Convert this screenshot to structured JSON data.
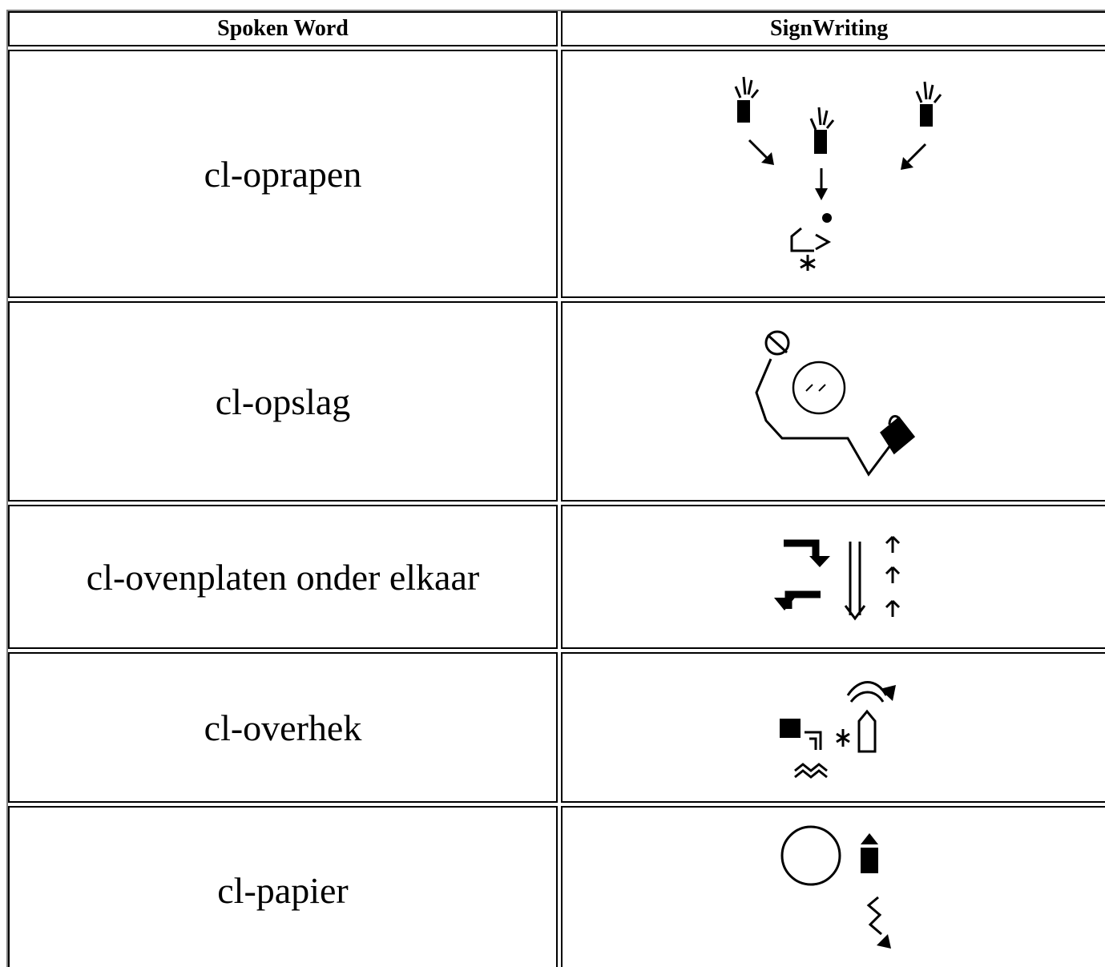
{
  "table": {
    "header": [
      "Spoken Word",
      "SignWriting"
    ],
    "rows": [
      [
        "cl-oprapen"
      ],
      [
        "cl-opslag"
      ],
      [
        "cl-ovenplaten onder elkaar"
      ],
      [
        "cl-overhek"
      ],
      [
        "cl-papier"
      ]
    ]
  }
}
